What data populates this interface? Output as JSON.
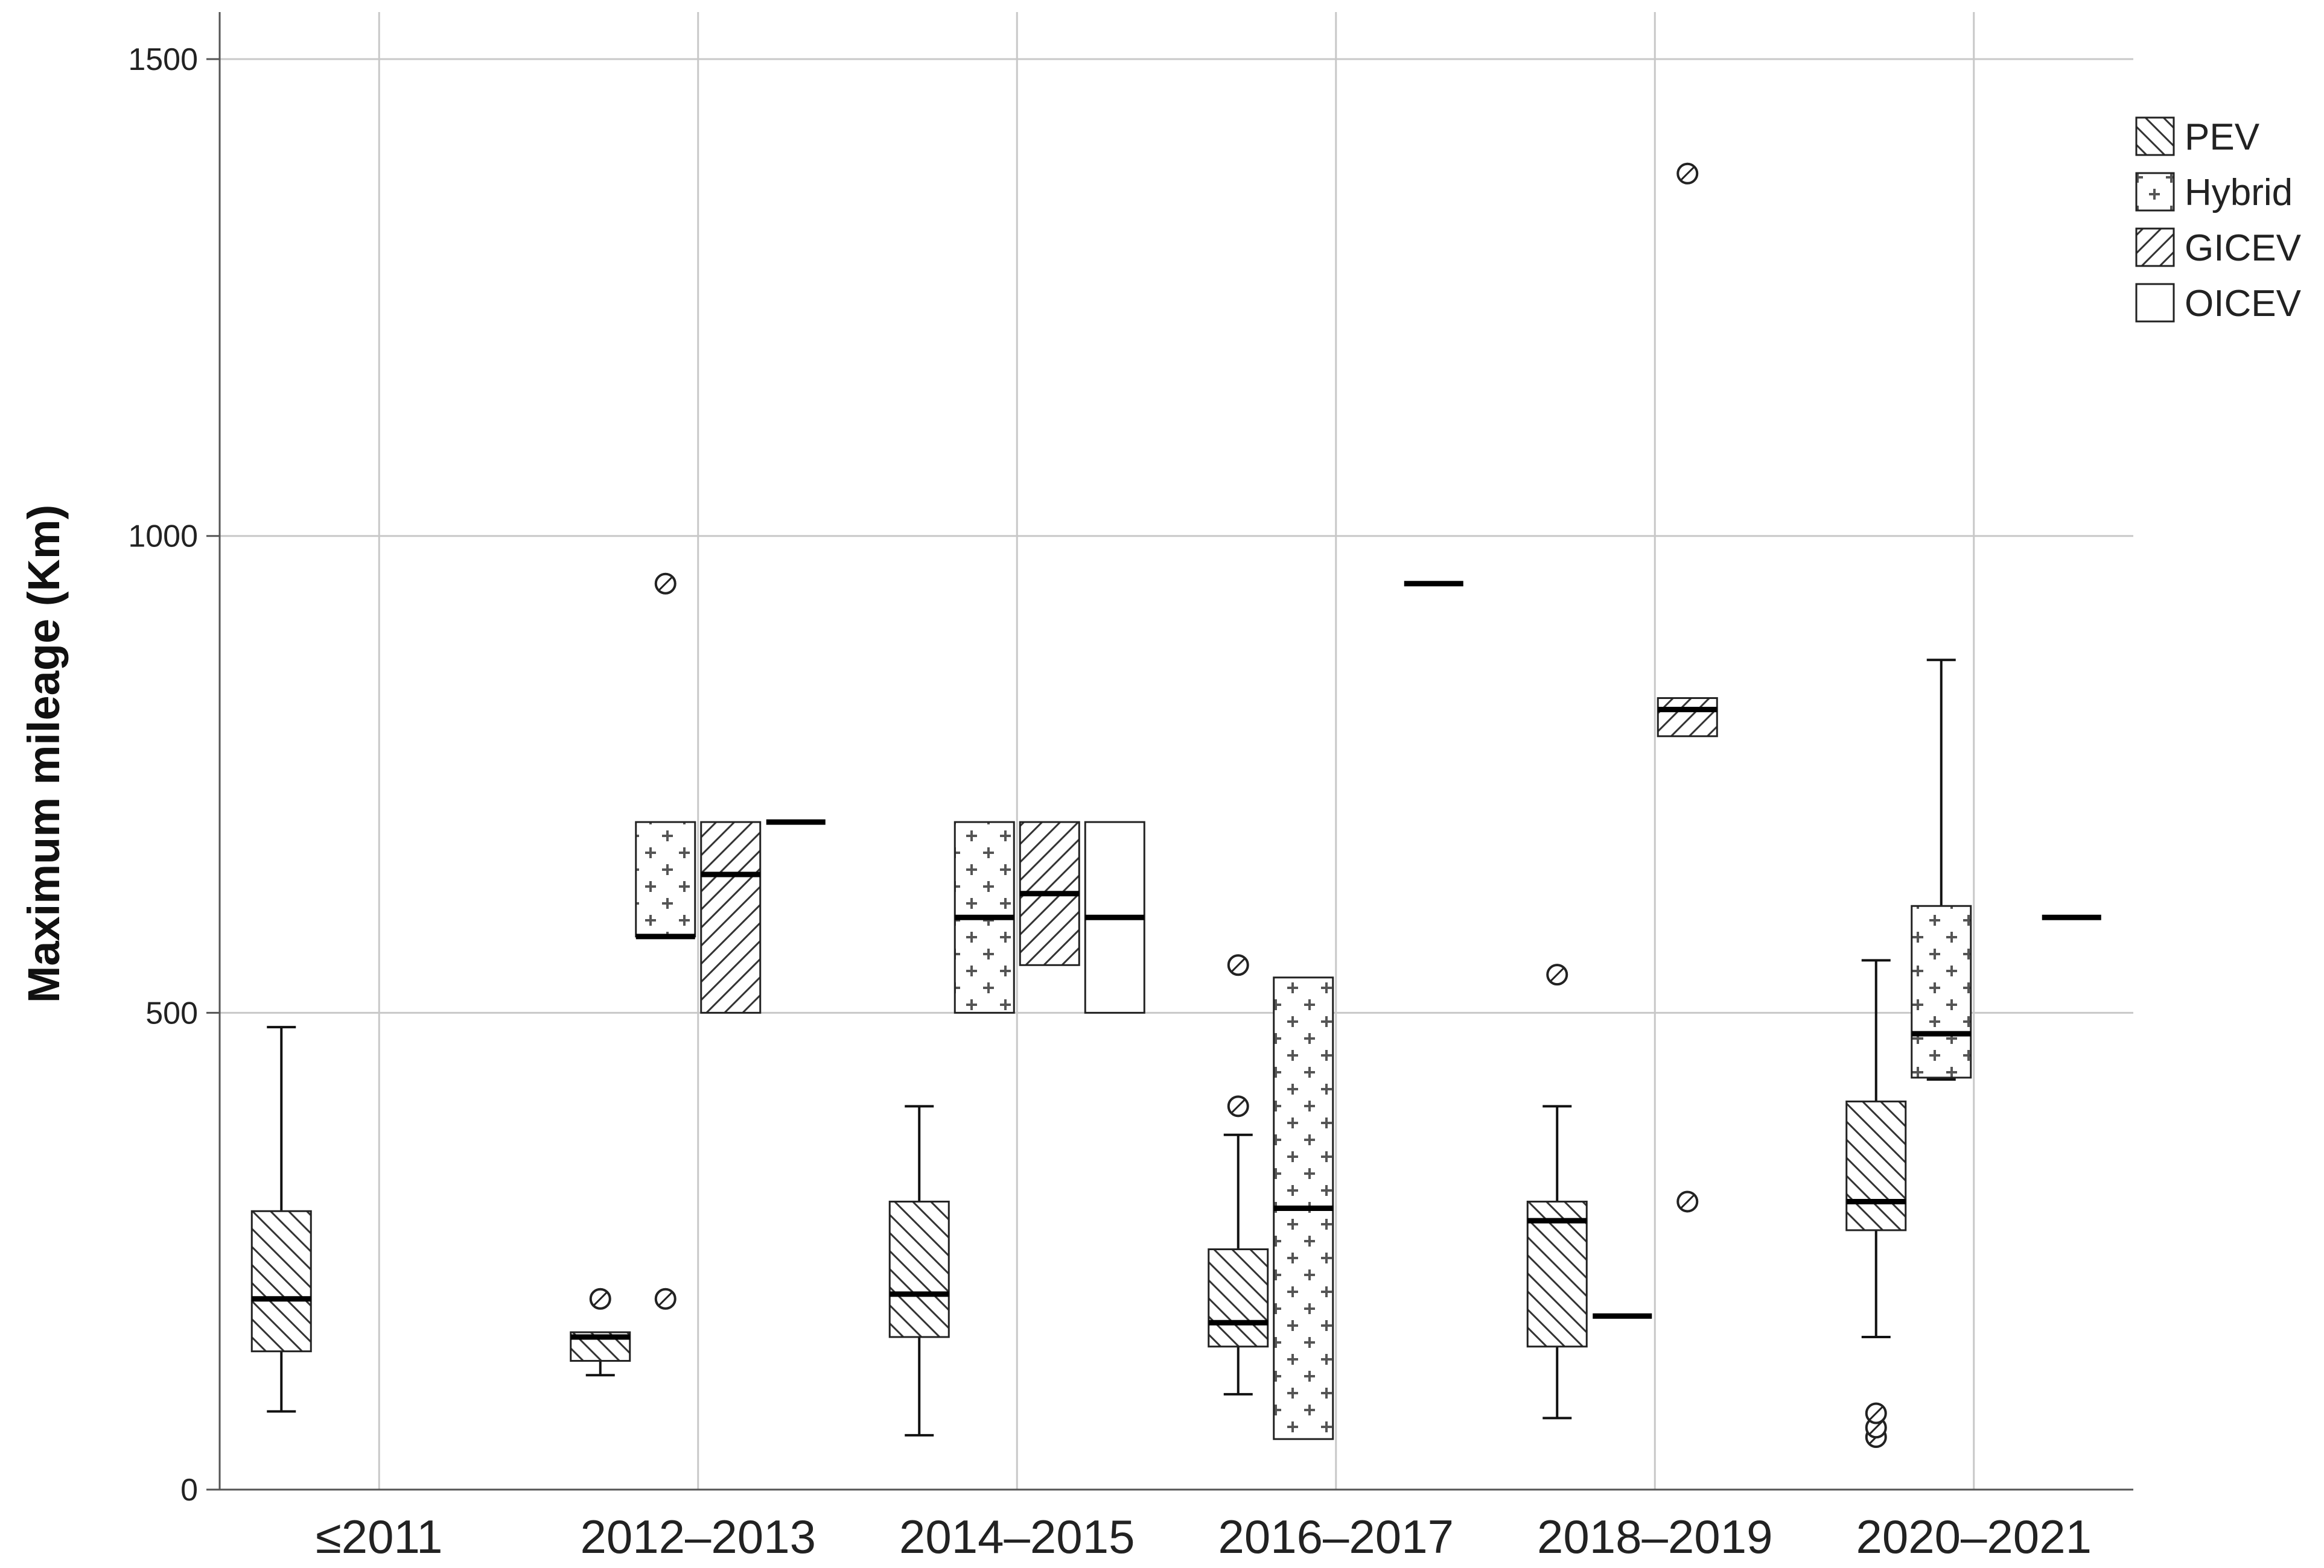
{
  "chart_data": {
    "type": "boxplot",
    "ylabel": "Maximum mileage (Km)",
    "ylim": [
      0,
      1560
    ],
    "yticks": [
      0,
      500,
      1000,
      1500
    ],
    "grid": true,
    "legend_position": "top-right",
    "categories": [
      "≤2011",
      "2012–2013",
      "2014–2015",
      "2016–2017",
      "2018–2019",
      "2020–2021"
    ],
    "series": [
      {
        "name": "PEV",
        "pattern": "hatch-back",
        "boxes": [
          {
            "category": "≤2011",
            "whisker_low": 82,
            "q1": 145,
            "median": 200,
            "q3": 292,
            "whisker_high": 485,
            "outliers": []
          },
          {
            "category": "2012–2013",
            "whisker_low": 120,
            "q1": 135,
            "median": 160,
            "q3": 165,
            "whisker_high": 165,
            "outliers": [
              200
            ]
          },
          {
            "category": "2014–2015",
            "whisker_low": 57,
            "q1": 160,
            "median": 205,
            "q3": 302,
            "whisker_high": 402,
            "outliers": []
          },
          {
            "category": "2016–2017",
            "whisker_low": 100,
            "q1": 150,
            "median": 175,
            "q3": 252,
            "whisker_high": 372,
            "outliers": [
              402,
              550
            ]
          },
          {
            "category": "2018–2019",
            "whisker_low": 75,
            "q1": 150,
            "median": 282,
            "q3": 302,
            "whisker_high": 402,
            "outliers": [
              540
            ]
          },
          {
            "category": "2020–2021",
            "whisker_low": 160,
            "q1": 272,
            "median": 302,
            "q3": 407,
            "whisker_high": 555,
            "outliers": [
              55,
              65,
              80
            ]
          }
        ]
      },
      {
        "name": "Hybrid",
        "pattern": "cross",
        "boxes": [
          {
            "category": "2012–2013",
            "whisker_low": 580,
            "q1": 580,
            "median": 580,
            "q3": 700,
            "whisker_high": 700,
            "outliers": [
              950,
              200
            ]
          },
          {
            "category": "2014–2015",
            "whisker_low": 500,
            "q1": 500,
            "median": 600,
            "q3": 700,
            "whisker_high": 700,
            "outliers": []
          },
          {
            "category": "2016–2017",
            "whisker_low": 53,
            "q1": 53,
            "median": 295,
            "q3": 537,
            "whisker_high": 537,
            "outliers": []
          },
          {
            "category": "2018–2019",
            "whisker_low": 182,
            "q1": 182,
            "median": 182,
            "q3": 182,
            "whisker_high": 182,
            "outliers": []
          },
          {
            "category": "2020–2021",
            "whisker_low": 430,
            "q1": 432,
            "median": 478,
            "q3": 612,
            "whisker_high": 870,
            "outliers": []
          }
        ]
      },
      {
        "name": "GICEV",
        "pattern": "hatch-forward",
        "boxes": [
          {
            "category": "2012–2013",
            "whisker_low": 500,
            "q1": 500,
            "median": 645,
            "q3": 700,
            "whisker_high": 700,
            "outliers": []
          },
          {
            "category": "2014–2015",
            "whisker_low": 550,
            "q1": 550,
            "median": 625,
            "q3": 700,
            "whisker_high": 700,
            "outliers": []
          },
          {
            "category": "2018–2019",
            "whisker_low": 790,
            "q1": 790,
            "median": 818,
            "q3": 830,
            "whisker_high": 830,
            "outliers": [
              1380,
              302
            ]
          }
        ]
      },
      {
        "name": "OICEV",
        "pattern": "none",
        "boxes": [
          {
            "category": "2012–2013",
            "whisker_low": 700,
            "q1": 700,
            "median": 700,
            "q3": 700,
            "whisker_high": 700,
            "outliers": []
          },
          {
            "category": "2014–2015",
            "whisker_low": 500,
            "q1": 500,
            "median": 600,
            "q3": 700,
            "whisker_high": 700,
            "outliers": []
          },
          {
            "category": "2016–2017",
            "whisker_low": 950,
            "q1": 950,
            "median": 950,
            "q3": 950,
            "whisker_high": 950,
            "outliers": []
          },
          {
            "category": "2020–2021",
            "whisker_low": 600,
            "q1": 600,
            "median": 600,
            "q3": 600,
            "whisker_high": 600,
            "outliers": []
          }
        ]
      }
    ]
  }
}
